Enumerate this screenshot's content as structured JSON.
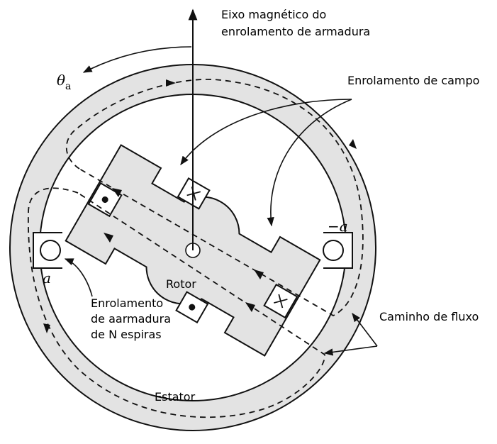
{
  "labels": {
    "axis_line1": "Eixo magnético do",
    "axis_line2": "enrolamento de armadura",
    "theta": "θ",
    "theta_sub": "a",
    "field_winding": "Enrolamento de campo",
    "minus_a": "−a",
    "a": "a",
    "rotor": "Rotor",
    "armature_line1": "Enrolamento",
    "armature_line2": "de aarmadura",
    "armature_line3": "de N espiras",
    "flux_path": "Caminho de fluxo",
    "stator": "Estator"
  },
  "colors": {
    "fill": "#e3e3e3",
    "stroke": "#111111",
    "background": "#ffffff"
  }
}
